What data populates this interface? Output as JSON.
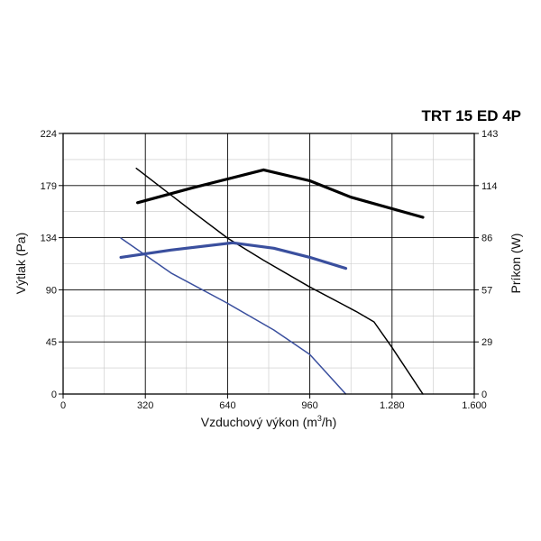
{
  "chart_data": {
    "type": "line",
    "title": "TRT 15 ED 4P",
    "xlabel": "Vzduchový výkon (m3/h)",
    "xlabel_main": "Vzduchový výkon (m",
    "xlabel_sup": "3",
    "xlabel_end": "/h)",
    "ylabel_left": "Výtlak (Pa)",
    "ylabel_right": "Príkon (W)",
    "xlim": [
      0,
      1600
    ],
    "ylim_left": [
      0,
      224
    ],
    "ylim_right": [
      0,
      143
    ],
    "x_ticks": [
      0,
      320,
      640,
      960,
      1280,
      1600
    ],
    "x_tick_labels": [
      "0",
      "320",
      "640",
      "960",
      "1.280",
      "1.600"
    ],
    "y_left_ticks": [
      0,
      45,
      90,
      134,
      179,
      224
    ],
    "y_left_tick_labels": [
      "0",
      "45",
      "90",
      "134",
      "179",
      "224"
    ],
    "y_right_ticks": [
      0,
      29,
      57,
      86,
      114,
      143
    ],
    "y_right_tick_labels": [
      "0",
      "29",
      "57",
      "86",
      "114",
      "143"
    ],
    "grid": true,
    "series": [
      {
        "axis": "left",
        "color": "#000000",
        "stroke": "thin",
        "x": [
          285,
          520,
          640,
          780,
          960,
          1140,
          1210,
          1280,
          1400
        ],
        "y": [
          194,
          154,
          134,
          115,
          92,
          71,
          62,
          40,
          0
        ]
      },
      {
        "axis": "right",
        "color": "#000000",
        "stroke": "thick",
        "x": [
          290,
          500,
          640,
          780,
          960,
          1120,
          1400
        ],
        "y": [
          105,
          113,
          118,
          123,
          117,
          108,
          97
        ]
      },
      {
        "axis": "left",
        "color": "#3a4f9e",
        "stroke": "thin",
        "x": [
          225,
          420,
          640,
          820,
          960,
          1100
        ],
        "y": [
          134,
          104,
          78,
          55,
          34,
          0
        ]
      },
      {
        "axis": "right",
        "color": "#3a4f9e",
        "stroke": "thick",
        "x": [
          225,
          420,
          660,
          820,
          960,
          1100
        ],
        "y": [
          75,
          79,
          83,
          80,
          75,
          69
        ]
      }
    ]
  }
}
